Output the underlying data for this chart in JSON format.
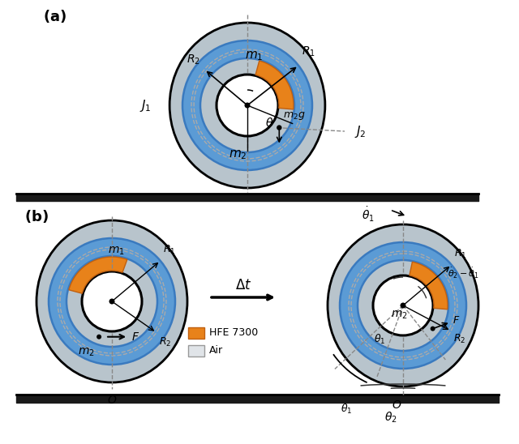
{
  "bg_color": "#ffffff",
  "gray_color": "#b8c4cc",
  "blue_color": "#5b9bd5",
  "blue_edge": "#3a7abf",
  "orange_color": "#e8821a",
  "orange_edge": "#c06010",
  "black": "#1a1a1a",
  "dashed_color": "#888888",
  "ground_color": "#1a1a1a",
  "light_gray": "#d8dde0"
}
